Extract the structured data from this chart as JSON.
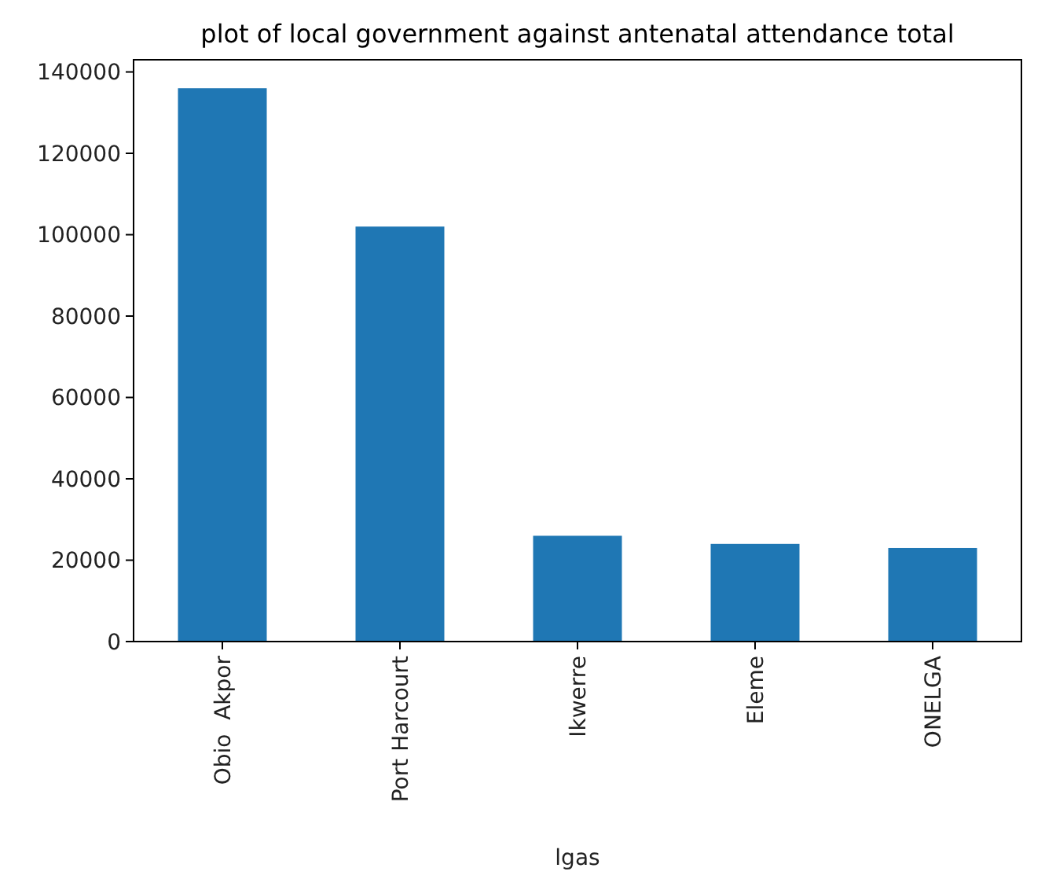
{
  "chart_data": {
    "type": "bar",
    "title": "plot of local government against antenatal attendance total",
    "xlabel": "lgas",
    "categories": [
      "Obio  Akpor",
      "Port Harcourt",
      "Ikwerre",
      "Eleme",
      "ONELGA"
    ],
    "values": [
      136000,
      102000,
      26000,
      24000,
      23000
    ],
    "color": "#1f77b4",
    "ylim": [
      0,
      143000
    ],
    "yticks": [
      0,
      20000,
      40000,
      60000,
      80000,
      100000,
      120000,
      140000
    ]
  }
}
